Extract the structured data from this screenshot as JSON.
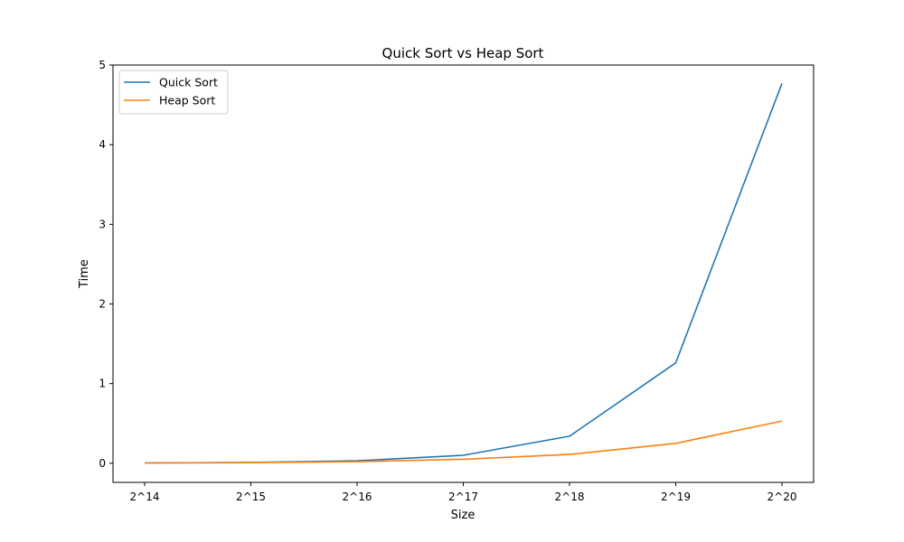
{
  "chart_data": {
    "type": "line",
    "title": "Quick Sort vs Heap Sort",
    "xlabel": "Size",
    "ylabel": "Time",
    "categories": [
      "2^14",
      "2^15",
      "2^16",
      "2^17",
      "2^18",
      "2^19",
      "2^20"
    ],
    "yticks": [
      "0",
      "1",
      "2",
      "3",
      "4",
      "5"
    ],
    "ylim": [
      -0.24,
      5.0
    ],
    "grid": false,
    "legend_position": "top-left",
    "series": [
      {
        "name": "Quick Sort",
        "color": "#1f77b4",
        "values": [
          0.004,
          0.011,
          0.031,
          0.1,
          0.34,
          1.26,
          4.77
        ]
      },
      {
        "name": "Heap Sort",
        "color": "#ff7f0e",
        "values": [
          0.003,
          0.008,
          0.02,
          0.05,
          0.11,
          0.25,
          0.53
        ]
      }
    ]
  }
}
